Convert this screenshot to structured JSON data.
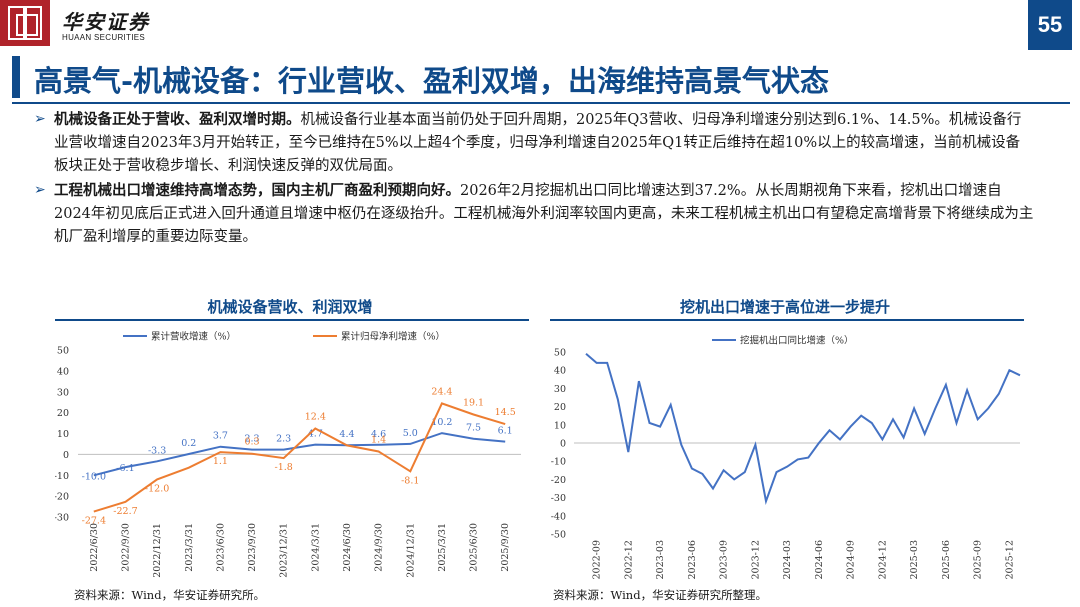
{
  "header": {
    "brand_cn": "华安证券",
    "brand_en": "HUAAN SECURITIES",
    "page_number": "55"
  },
  "title": "高景气-机械设备：行业营收、盈利双增，出海维持高景气状态",
  "bullets": [
    {
      "bold": "机械设备正处于营收、盈利双增时期。",
      "text": "机械设备行业基本面当前仍处于回升周期，2025年Q3营收、归母净利增速分别达到6.1%、14.5%。机械设备行业营收增速自2023年3月开始转正，至今已维持在5%以上超4个季度，归母净利增速自2025年Q1转正后维持在超10%以上的较高增速，当前机械设备板块正处于营收稳步增长、利润快速反弹的双优局面。"
    },
    {
      "bold": "工程机械出口增速维持高增态势，国内主机厂商盈利预期向好。",
      "text": "2026年2月挖掘机出口同比增速达到37.2%。从长周期视角下来看，挖机出口增速自2024年初见底后正式进入回升通道且增速中枢仍在逐级抬升。工程机械海外利润率较国内更高，未来工程机械主机出口有望稳定高增背景下将继续成为主机厂盈利增厚的重要边际变量。"
    }
  ],
  "chart_left_title": "机械设备营收、利润双增",
  "chart_right_title": "挖机出口增速于高位进一步提升",
  "source_left": "资料来源：Wind，华安证券研究所。",
  "source_right": "资料来源：Wind，华安证券研究所整理。",
  "chart_data": [
    {
      "type": "line",
      "title": "机械设备营收、利润双增",
      "categories": [
        "2022/6/30",
        "2022/9/30",
        "2022/12/31",
        "2023/3/31",
        "2023/6/30",
        "2023/9/30",
        "2023/12/31",
        "2024/3/31",
        "2024/6/30",
        "2024/9/30",
        "2024/12/31",
        "2025/3/31",
        "2025/6/30",
        "2025/9/30"
      ],
      "ylim": [
        -30,
        50
      ],
      "yticks": [
        -30,
        -20,
        -10,
        0,
        10,
        20,
        30,
        40,
        50
      ],
      "legend_position": "top",
      "series": [
        {
          "name": "累计营收增速（%）",
          "color": "#4472c4",
          "values": [
            -10.0,
            -6.1,
            -3.3,
            0.2,
            3.7,
            2.3,
            2.3,
            4.7,
            4.4,
            4.6,
            5.0,
            10.2,
            7.5,
            6.1
          ],
          "labels": [
            "-10.0",
            "-6.1",
            "-3.3",
            "0.2",
            "3.7",
            "2.3",
            "2.3",
            "4.7",
            "4.4",
            "4.6",
            "5.0",
            "10.2",
            "7.5",
            "6.1"
          ]
        },
        {
          "name": "累计归母净利增速（%）",
          "color": "#ed7d31",
          "values": [
            -27.4,
            -22.7,
            -12.0,
            -6.4,
            1.1,
            0.3,
            -1.8,
            12.4,
            4.3,
            1.4,
            -8.1,
            24.4,
            19.1,
            14.5
          ],
          "labels": [
            "-27.4",
            "-22.7",
            "-12.0",
            "",
            "1.1",
            "0.3",
            "-1.8",
            "12.4",
            "",
            "1.4",
            "-8.1",
            "24.4",
            "19.1",
            "14.5"
          ]
        }
      ]
    },
    {
      "type": "line",
      "title": "挖机出口增速于高位进一步提升",
      "ylim": [
        -50,
        50
      ],
      "yticks": [
        -50,
        -40,
        -30,
        -20,
        -10,
        0,
        10,
        20,
        30,
        40,
        50
      ],
      "x_ticks": [
        "2022-09",
        "2022-12",
        "2023-03",
        "2023-06",
        "2023-09",
        "2023-12",
        "2024-03",
        "2024-06",
        "2024-09",
        "2024-12",
        "2025-03",
        "2025-06",
        "2025-09",
        "2025-12"
      ],
      "legend_position": "top",
      "series": [
        {
          "name": "挖掘机出口同比增速（%）",
          "color": "#4472c4",
          "values": [
            49,
            44,
            44,
            24,
            -5,
            34,
            11,
            9,
            21,
            -1,
            -14,
            -17,
            -25,
            -15,
            -20,
            -16,
            -1,
            -32,
            -16,
            -13,
            -9,
            -8,
            0,
            7,
            2,
            9,
            15,
            11,
            2,
            13,
            3,
            19,
            5,
            19,
            32,
            11,
            29,
            13,
            19,
            27,
            40,
            37.2
          ]
        }
      ]
    }
  ]
}
